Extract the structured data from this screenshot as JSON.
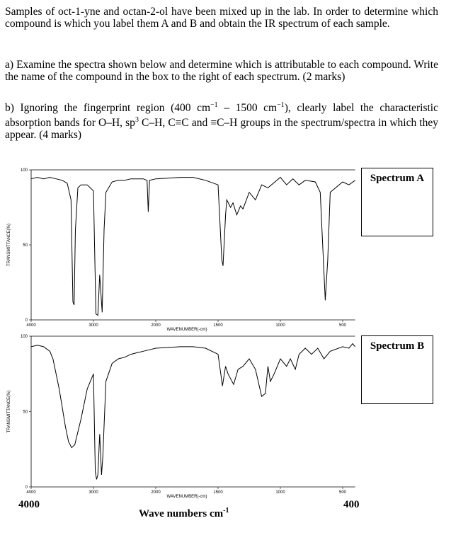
{
  "intro": "Samples of oct-1-yne and octan-2-ol have been mixed up in the lab.  In order to determine which compound is which you label them A and B and obtain the IR spectrum of each sample.",
  "part_a": "a) Examine the spectra shown below and determine which is attributable to each compound. Write the name of the compound in the box to the right of each spectrum.  (2 marks)",
  "part_b": [
    "b) Ignoring the fingerprint region (400 cm",
    "−1",
    " – 1500 cm",
    "−1",
    "), clearly label the characteristic absorption bands for O–H, sp",
    "3",
    " C–H, C≡C and ≡C–H groups in the spectrum/spectra in which they appear.  (4 marks)"
  ],
  "answer_boxes": [
    "Spectrum A",
    "Spectrum B"
  ],
  "footer": {
    "left": "4000",
    "right": "400",
    "axis_title": [
      "Wave numbers cm",
      "-1"
    ]
  },
  "chart_data": [
    {
      "type": "line",
      "x_label": "WAVENUMBER(-cm)",
      "y_label": "TRANSMITTANCE(%)",
      "color": "#000000",
      "xlim": [
        4000,
        400
      ],
      "ylim": [
        0,
        100
      ],
      "xticks": [
        4000,
        3000,
        2000,
        1500,
        1000,
        500
      ],
      "yticks": [
        0,
        50,
        100
      ],
      "x": [
        4000,
        3900,
        3800,
        3700,
        3600,
        3500,
        3420,
        3360,
        3330,
        3310,
        3290,
        3250,
        3200,
        3100,
        3000,
        2960,
        2930,
        2900,
        2860,
        2830,
        2800,
        2700,
        2600,
        2500,
        2400,
        2300,
        2200,
        2140,
        2120,
        2100,
        2000,
        1800,
        1700,
        1600,
        1500,
        1470,
        1460,
        1440,
        1430,
        1400,
        1380,
        1350,
        1320,
        1300,
        1250,
        1200,
        1150,
        1100,
        1000,
        950,
        900,
        850,
        800,
        720,
        680,
        640,
        620,
        600,
        500,
        450,
        400
      ],
      "values": [
        94,
        95,
        94,
        95,
        94,
        93,
        91,
        80,
        12,
        10,
        60,
        88,
        90,
        90,
        86,
        4,
        3,
        30,
        5,
        60,
        85,
        92,
        93,
        93,
        94,
        94,
        94,
        93,
        72,
        93,
        94,
        95,
        95,
        93,
        90,
        40,
        36,
        70,
        80,
        75,
        78,
        70,
        76,
        74,
        85,
        80,
        90,
        88,
        95,
        90,
        94,
        90,
        93,
        92,
        85,
        13,
        40,
        85,
        92,
        90,
        93
      ]
    },
    {
      "type": "line",
      "x_label": "WAVENUMBER(-cm)",
      "y_label": "TRANSMITTANCE(%)",
      "color": "#000000",
      "xlim": [
        4000,
        400
      ],
      "ylim": [
        0,
        100
      ],
      "xticks": [
        4000,
        3000,
        2000,
        1500,
        1000,
        500
      ],
      "yticks": [
        0,
        50,
        100
      ],
      "x": [
        4000,
        3900,
        3800,
        3700,
        3650,
        3550,
        3450,
        3400,
        3350,
        3300,
        3200,
        3100,
        3000,
        2970,
        2950,
        2930,
        2900,
        2870,
        2850,
        2800,
        2700,
        2600,
        2500,
        2400,
        2300,
        2200,
        2100,
        2000,
        1800,
        1700,
        1600,
        1500,
        1465,
        1440,
        1420,
        1375,
        1340,
        1300,
        1250,
        1200,
        1150,
        1120,
        1100,
        1080,
        1050,
        1000,
        950,
        920,
        880,
        850,
        800,
        750,
        700,
        650,
        600,
        500,
        450,
        420,
        400
      ],
      "values": [
        93,
        94,
        93,
        90,
        85,
        65,
        40,
        30,
        26,
        28,
        45,
        65,
        75,
        10,
        5,
        8,
        35,
        8,
        20,
        70,
        82,
        85,
        86,
        88,
        89,
        90,
        91,
        92,
        93,
        93,
        92,
        88,
        67,
        80,
        75,
        68,
        78,
        80,
        85,
        78,
        60,
        62,
        80,
        70,
        75,
        85,
        80,
        85,
        78,
        88,
        92,
        88,
        92,
        85,
        90,
        93,
        92,
        95,
        93
      ]
    }
  ]
}
